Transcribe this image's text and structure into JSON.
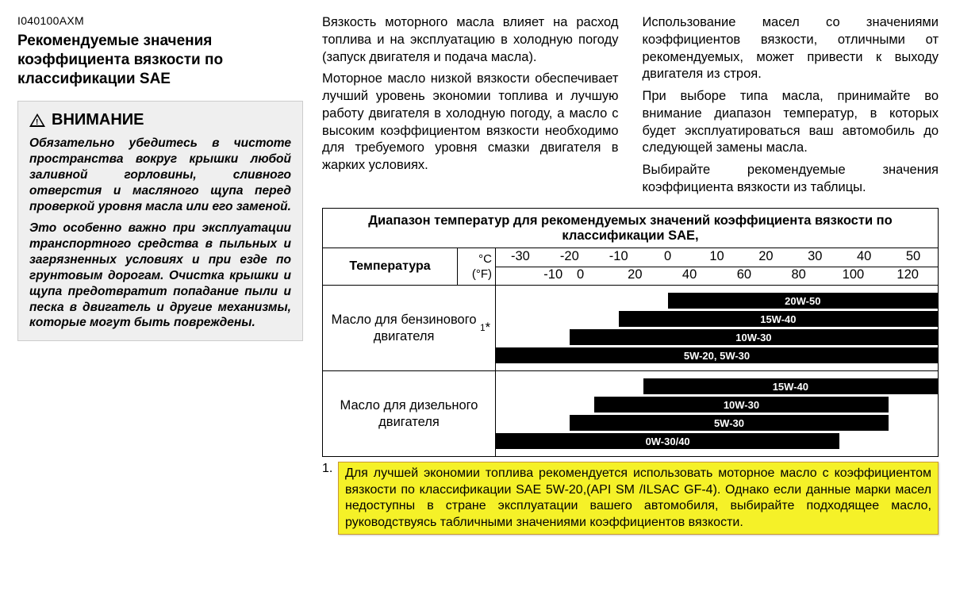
{
  "doc_code": "I040100AXM",
  "main_title": "Рекомендуемые значения коэффициента вязкости по классификации SAE",
  "warning": {
    "heading": "ВНИМАНИЕ",
    "p1": "Обязательно убедитесь в чистоте пространства вокруг крышки любой заливной горловины, сливного отверстия и масляного щупа перед проверкой уровня масла или его заменой.",
    "p2": "Это особенно важно при эксплуатации транспортного средства в пыльных и загрязненных условиях и при езде по грунтовым дорогам. Очистка крышки и щупа предотвратит попадание пыли и песка в двигатель и другие механизмы, которые могут быть повреждены."
  },
  "body": {
    "c1p1": "Вязкость моторного масла влияет на расход топлива и на эксплуатацию в холодную погоду (запуск двигателя и подача масла).",
    "c1p2": "Моторное масло низкой вязкости обеспечивает лучший уровень экономии топлива и лучшую работу двигателя в холодную погоду, а масло с высоким коэффициентом вязкости необходимо для требуемого уровня смазки двигателя в жарких условиях.",
    "c2p1": "Использование масел со значениями коэффициентов вязкости, отличными от рекомендуемых, может привести к выходу двигателя из строя.",
    "c2p2": "При выборе типа масла, принимайте во внимание диапазон температур, в которых будет эксплуатироваться ваш автомобиль до следующей замены масла.",
    "c2p3": "Выбирайте рекомендуемые значения коэффициента вязкости из таблицы."
  },
  "chart": {
    "title": "Диапазон температур для рекомендуемых значений коэффициента вязкости по классификации SAE,",
    "row_label": "Температура",
    "unit_c": "°C",
    "unit_f": "(°F)",
    "c_ticks": [
      "-30",
      "-20",
      "-10",
      "0",
      "10",
      "20",
      "30",
      "40",
      "50"
    ],
    "f_ticks": [
      "-10",
      "0",
      "20",
      "40",
      "60",
      "80",
      "100",
      "120"
    ],
    "c_min": -35,
    "c_max": 55,
    "colors": {
      "bar_bg": "#000000",
      "bar_text": "#ffffff",
      "border": "#000000",
      "bg": "#ffffff"
    },
    "fontsize_label": 16.5,
    "sections": [
      {
        "label_html": "Масло для бензинового двигателя <sup>1</sup>*",
        "bars": [
          {
            "label": "20W-50",
            "from_c": 0,
            "to_c": 55
          },
          {
            "label": "15W-40",
            "from_c": -10,
            "to_c": 55
          },
          {
            "label": "10W-30",
            "from_c": -20,
            "to_c": 55
          },
          {
            "label": "5W-20, 5W-30",
            "from_c": -35,
            "to_c": 55
          }
        ]
      },
      {
        "label_html": "Масло для дизельного двигателя",
        "bars": [
          {
            "label": "15W-40",
            "from_c": -5,
            "to_c": 55
          },
          {
            "label": "10W-30",
            "from_c": -15,
            "to_c": 45
          },
          {
            "label": "5W-30",
            "from_c": -20,
            "to_c": 45
          },
          {
            "label": "0W-30/40",
            "from_c": -35,
            "to_c": 35
          }
        ]
      }
    ]
  },
  "footnote_num": "1.",
  "footnote": "Для лучшей экономии топлива рекомендуется использовать моторное масло с коэффициентом вязкости по классификации SAE 5W-20,(API SM /ILSAC GF-4). Однако если данные марки масел недоступны в стране эксплуатации вашего автомобиля, выбирайте подходящее масло, руководствуясь табличными значениями коэффициентов вязкости."
}
